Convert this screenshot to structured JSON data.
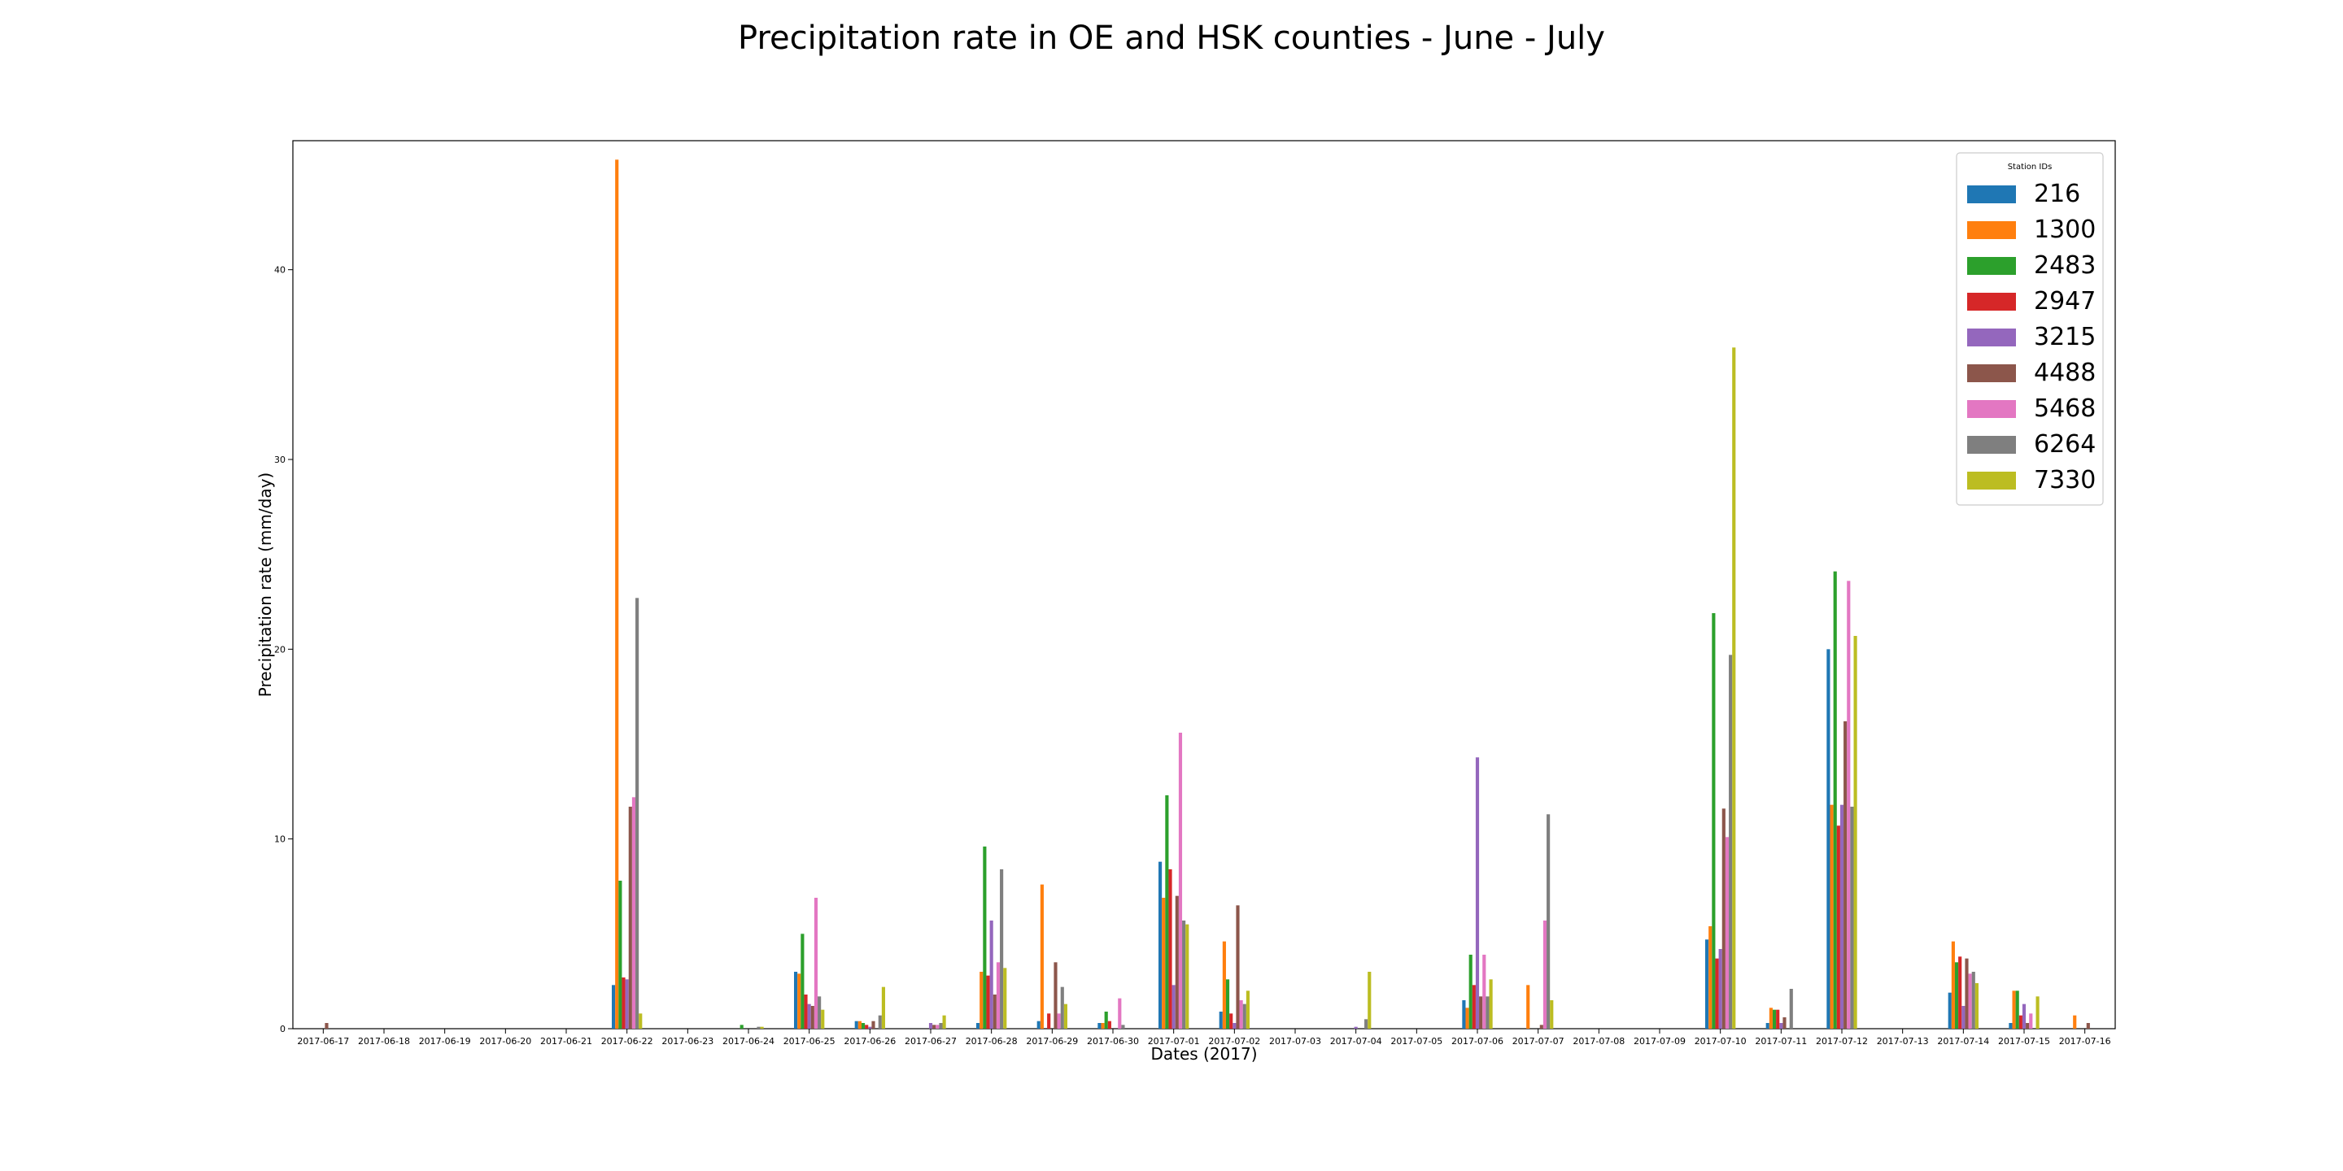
{
  "chart_data": {
    "type": "bar",
    "title": "Precipitation rate in OE and HSK counties - June - July",
    "xlabel": "Dates (2017)",
    "ylabel": "Precipitation rate (mm/day)",
    "ylim": [
      0,
      46.8
    ],
    "yticks": [
      0,
      10,
      20,
      30,
      40
    ],
    "legend": {
      "title": "Station IDs",
      "placement": "top-right"
    },
    "grid": false,
    "categories": [
      "2017-06-17",
      "2017-06-18",
      "2017-06-19",
      "2017-06-20",
      "2017-06-21",
      "2017-06-22",
      "2017-06-23",
      "2017-06-24",
      "2017-06-25",
      "2017-06-26",
      "2017-06-27",
      "2017-06-28",
      "2017-06-29",
      "2017-06-30",
      "2017-07-01",
      "2017-07-02",
      "2017-07-03",
      "2017-07-04",
      "2017-07-05",
      "2017-07-06",
      "2017-07-07",
      "2017-07-08",
      "2017-07-09",
      "2017-07-10",
      "2017-07-11",
      "2017-07-12",
      "2017-07-13",
      "2017-07-14",
      "2017-07-15",
      "2017-07-16"
    ],
    "series": [
      {
        "name": "216",
        "color": "#1f77b4",
        "values": [
          0,
          0,
          0,
          0,
          0,
          2.3,
          0,
          0,
          3.0,
          0.4,
          0,
          0.3,
          0.4,
          0.3,
          8.8,
          0.9,
          0,
          0,
          0,
          1.5,
          0,
          0,
          0,
          4.7,
          0.3,
          20.0,
          0,
          1.9,
          0.3,
          0
        ]
      },
      {
        "name": "1300",
        "color": "#ff7f0e",
        "values": [
          0,
          0,
          0,
          0,
          0,
          45.8,
          0,
          0,
          2.9,
          0.4,
          0,
          3.0,
          7.6,
          0.3,
          6.9,
          4.6,
          0,
          0,
          0,
          1.1,
          2.3,
          0,
          0,
          5.4,
          1.1,
          11.8,
          0,
          4.6,
          2.0,
          0.7
        ]
      },
      {
        "name": "2483",
        "color": "#2ca02c",
        "values": [
          0,
          0,
          0,
          0,
          0,
          7.8,
          0,
          0.2,
          5.0,
          0.3,
          0,
          9.6,
          0,
          0.9,
          12.3,
          2.6,
          0,
          0,
          0,
          3.9,
          0,
          0,
          0,
          21.9,
          1.0,
          24.1,
          0,
          3.5,
          2.0,
          0
        ]
      },
      {
        "name": "2947",
        "color": "#d62728",
        "values": [
          0,
          0,
          0,
          0,
          0,
          2.7,
          0,
          0,
          1.8,
          0.2,
          0,
          2.8,
          0.8,
          0.4,
          8.4,
          0.8,
          0,
          0,
          0,
          2.3,
          0,
          0,
          0,
          3.7,
          1.0,
          10.7,
          0,
          3.8,
          0.7,
          0
        ]
      },
      {
        "name": "3215",
        "color": "#9467bd",
        "values": [
          0,
          0,
          0,
          0,
          0,
          2.6,
          0,
          0,
          1.3,
          0.1,
          0.3,
          5.7,
          0,
          0,
          2.3,
          0.3,
          0,
          0.1,
          0,
          14.3,
          0,
          0,
          0,
          4.2,
          0.3,
          11.8,
          0,
          1.2,
          1.3,
          0
        ]
      },
      {
        "name": "4488",
        "color": "#8c564b",
        "values": [
          0.3,
          0,
          0,
          0,
          0,
          11.7,
          0,
          0,
          1.2,
          0.4,
          0.2,
          1.8,
          3.5,
          0,
          7.0,
          6.5,
          0,
          0,
          0,
          1.7,
          0.2,
          0,
          0,
          11.6,
          0.6,
          16.2,
          0,
          3.7,
          0.3,
          0.3
        ]
      },
      {
        "name": "5468",
        "color": "#e377c2",
        "values": [
          0,
          0,
          0,
          0,
          0,
          12.2,
          0,
          0,
          6.9,
          0,
          0.2,
          3.5,
          0.8,
          1.6,
          15.6,
          1.5,
          0,
          0,
          0,
          3.9,
          5.7,
          0,
          0,
          10.1,
          0,
          23.6,
          0,
          2.9,
          0.8,
          0
        ]
      },
      {
        "name": "6264",
        "color": "#7f7f7f",
        "values": [
          0,
          0,
          0,
          0,
          0,
          22.7,
          0,
          0.1,
          1.7,
          0.7,
          0.3,
          8.4,
          2.2,
          0.2,
          5.7,
          1.3,
          0,
          0.5,
          0,
          1.7,
          11.3,
          0,
          0,
          19.7,
          2.1,
          11.7,
          0,
          3.0,
          0,
          0
        ]
      },
      {
        "name": "7330",
        "color": "#bcbd22",
        "values": [
          0,
          0,
          0,
          0,
          0,
          0.8,
          0,
          0.1,
          1.0,
          2.2,
          0.7,
          3.2,
          1.3,
          0,
          5.5,
          2.0,
          0,
          3.0,
          0,
          2.6,
          1.5,
          0,
          0,
          35.9,
          0,
          20.7,
          0,
          2.4,
          1.7,
          0
        ]
      }
    ]
  }
}
